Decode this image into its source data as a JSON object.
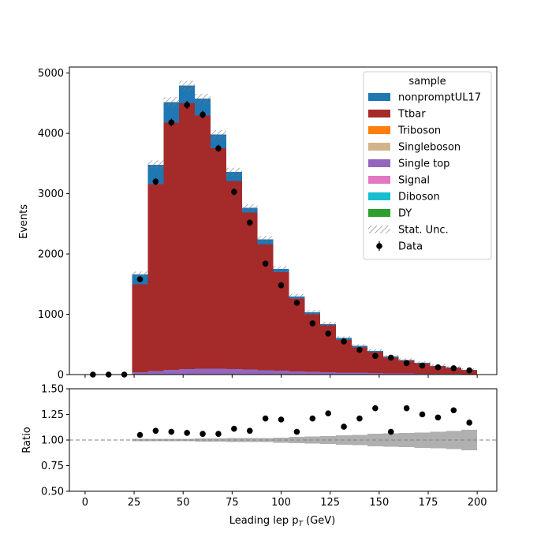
{
  "chart_data": [
    {
      "type": "bar",
      "stacked": true,
      "xlabel": "Leading lep p",
      "xlabel_sub": "T",
      "xlabel_unit": " (GeV)",
      "ylabel": "Events",
      "xlim": [
        -8,
        210
      ],
      "ylim": [
        0,
        5100
      ],
      "xticks": [
        0,
        25,
        50,
        75,
        100,
        125,
        150,
        175,
        200
      ],
      "yticks": [
        0,
        1000,
        2000,
        3000,
        4000,
        5000
      ],
      "bin_edges": [
        0,
        8,
        16,
        24,
        32,
        40,
        48,
        56,
        64,
        72,
        80,
        88,
        96,
        104,
        112,
        120,
        128,
        136,
        144,
        152,
        160,
        168,
        176,
        184,
        192,
        200
      ],
      "legend": {
        "title": "sample",
        "placement": "top-right",
        "entries": [
          {
            "name": "nonpromptUL17",
            "color": "#1f77b4",
            "kind": "patch"
          },
          {
            "name": "Ttbar",
            "color": "#a52a2a",
            "kind": "patch"
          },
          {
            "name": "Triboson",
            "color": "#ff7f0e",
            "kind": "patch"
          },
          {
            "name": "Singleboson",
            "color": "#d2b48c",
            "kind": "patch"
          },
          {
            "name": "Single top",
            "color": "#9467bd",
            "kind": "patch"
          },
          {
            "name": "Signal",
            "color": "#e377c2",
            "kind": "patch"
          },
          {
            "name": "Diboson",
            "color": "#17becf",
            "kind": "patch"
          },
          {
            "name": "DY",
            "color": "#2ca02c",
            "kind": "patch"
          },
          {
            "name": "Stat. Unc.",
            "color": "#888888",
            "kind": "hatch"
          },
          {
            "name": "Data",
            "color": "#000000",
            "kind": "marker"
          }
        ]
      },
      "series": [
        {
          "name": "Single top",
          "color": "#9467bd",
          "values": [
            0,
            0,
            0,
            40,
            60,
            80,
            90,
            95,
            95,
            90,
            85,
            75,
            65,
            55,
            45,
            40,
            35,
            30,
            25,
            20,
            18,
            15,
            12,
            10,
            8
          ]
        },
        {
          "name": "Ttbar",
          "color": "#a52a2a",
          "values": [
            0,
            0,
            0,
            1460,
            3100,
            4100,
            4410,
            4200,
            3660,
            3120,
            2600,
            2085,
            1635,
            1205,
            955,
            780,
            540,
            420,
            345,
            260,
            210,
            165,
            125,
            100,
            62
          ]
        },
        {
          "name": "nonpromptUL17",
          "color": "#1f77b4",
          "values": [
            0,
            0,
            0,
            160,
            320,
            340,
            290,
            280,
            225,
            150,
            80,
            85,
            50,
            35,
            30,
            20,
            30,
            30,
            25,
            20,
            17,
            15,
            10,
            10,
            10
          ]
        }
      ],
      "data_points": {
        "name": "Data",
        "x": [
          4,
          12,
          20,
          28,
          36,
          44,
          52,
          60,
          68,
          76,
          84,
          92,
          100,
          108,
          116,
          124,
          132,
          140,
          148,
          156,
          164,
          172,
          180,
          188,
          196
        ],
        "y": [
          0,
          0,
          0,
          1580,
          3200,
          4180,
          4470,
          4310,
          3750,
          3030,
          2520,
          1840,
          1480,
          1190,
          850,
          680,
          550,
          410,
          310,
          280,
          190,
          150,
          120,
          105,
          70
        ]
      }
    },
    {
      "type": "scatter",
      "xlabel": "Leading lep p",
      "xlabel_sub": "T",
      "xlabel_unit": " (GeV)",
      "ylabel": "Ratio",
      "ylim": [
        0.5,
        1.5
      ],
      "yticks": [
        "0.50",
        "0.75",
        "1.00",
        "1.25",
        "1.50"
      ],
      "reference_line": 1.0,
      "x": [
        28,
        36,
        44,
        52,
        60,
        68,
        76,
        84,
        92,
        100,
        108,
        116,
        124,
        132,
        140,
        148,
        156,
        164,
        172,
        180,
        188,
        196
      ],
      "y": [
        1.05,
        1.09,
        1.08,
        1.07,
        1.06,
        1.06,
        1.11,
        1.09,
        1.21,
        1.2,
        1.08,
        1.21,
        1.26,
        1.13,
        1.21,
        1.31,
        1.08,
        1.31,
        1.25,
        1.22,
        1.29,
        1.17
      ],
      "uncertainty_band": [
        0.02,
        0.01,
        0.01,
        0.01,
        0.01,
        0.01,
        0.01,
        0.015,
        0.015,
        0.02,
        0.02,
        0.02,
        0.025,
        0.03,
        0.035,
        0.04,
        0.045,
        0.05,
        0.06,
        0.065,
        0.07,
        0.075,
        0.08,
        0.09,
        0.1,
        0.12
      ]
    }
  ]
}
